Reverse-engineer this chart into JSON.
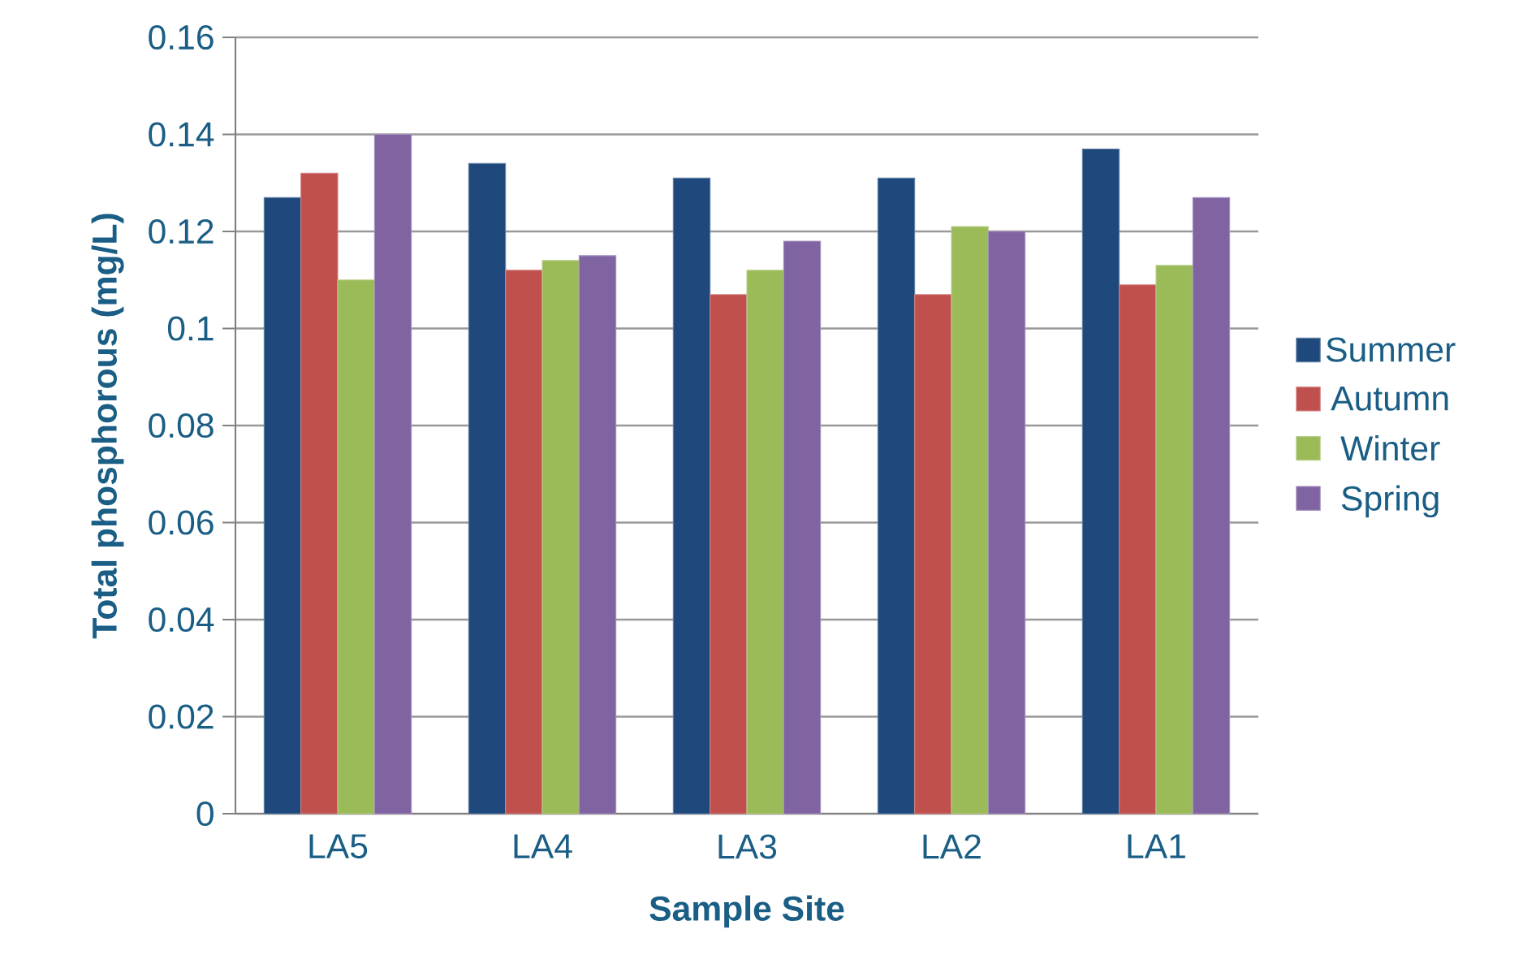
{
  "chart_data": {
    "type": "bar",
    "xlabel": "Sample Site",
    "ylabel": "Total phosphorous (mg/L)",
    "categories": [
      "LA5",
      "LA4",
      "LA3",
      "LA2",
      "LA1"
    ],
    "series": [
      {
        "name": "Summer",
        "color": "#1f497d",
        "values": [
          0.127,
          0.134,
          0.131,
          0.131,
          0.137
        ]
      },
      {
        "name": "Autumn",
        "color": "#c0504d",
        "values": [
          0.132,
          0.112,
          0.107,
          0.107,
          0.109
        ]
      },
      {
        "name": "Winter",
        "color": "#9bbb59",
        "values": [
          0.11,
          0.114,
          0.112,
          0.121,
          0.113
        ]
      },
      {
        "name": "Spring",
        "color": "#8064a2",
        "values": [
          0.14,
          0.115,
          0.118,
          0.12,
          0.127
        ]
      }
    ],
    "ylim": [
      0,
      0.16
    ],
    "yticks": [
      0,
      0.02,
      0.04,
      0.06,
      0.08,
      0.1,
      0.12,
      0.14,
      0.16
    ],
    "grid": "y",
    "legend": "right"
  }
}
